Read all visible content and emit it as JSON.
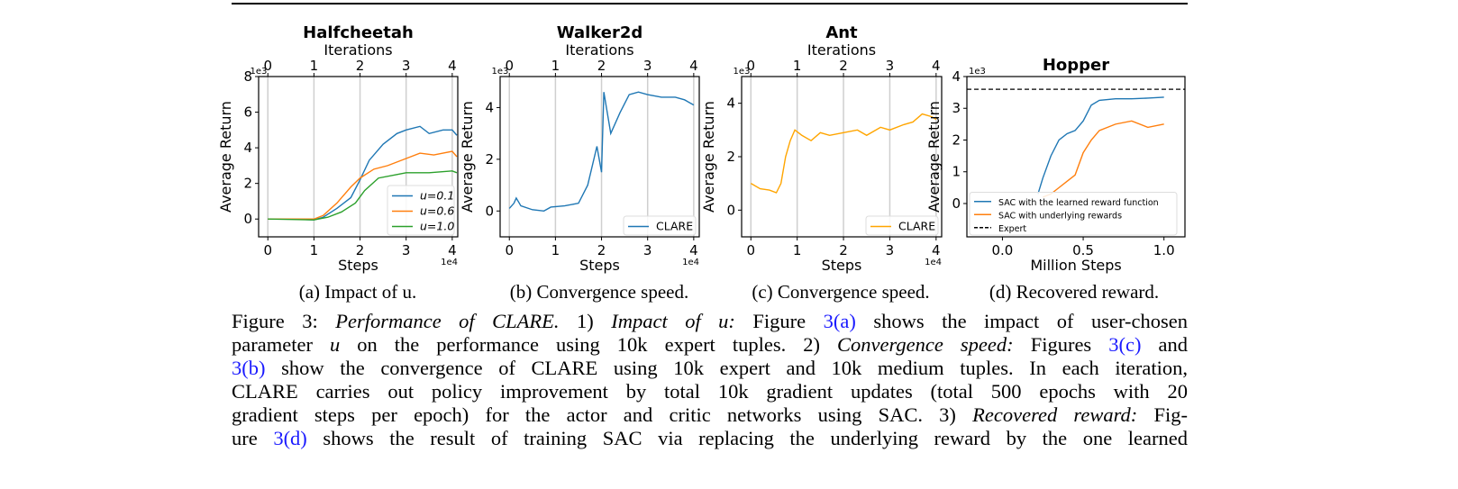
{
  "subcaptions": [
    "(a) Impact of u.",
    "(b) Convergence speed.",
    "(c) Convergence speed.",
    "(d) Recovered reward."
  ],
  "caption": {
    "lines": [
      [
        {
          "t": "Figure 3: ",
          "s": ""
        },
        {
          "t": "Performance of CLARE.",
          "s": "it"
        },
        {
          "t": " 1) ",
          "s": ""
        },
        {
          "t": "Impact of u:",
          "s": "it"
        },
        {
          "t": " Figure ",
          "s": ""
        },
        {
          "t": "3(a)",
          "s": "lk"
        },
        {
          "t": " shows the impact of user-chosen",
          "s": ""
        }
      ],
      [
        {
          "t": "parameter ",
          "s": ""
        },
        {
          "t": "u",
          "s": "it"
        },
        {
          "t": " on the performance using 10k expert tuples. 2) ",
          "s": ""
        },
        {
          "t": "Convergence speed:",
          "s": "it"
        },
        {
          "t": " Figures ",
          "s": ""
        },
        {
          "t": "3(c)",
          "s": "lk"
        },
        {
          "t": " and",
          "s": ""
        }
      ],
      [
        {
          "t": "3(b)",
          "s": "lk"
        },
        {
          "t": " show the convergence of CLARE using 10k expert and 10k medium tuples. In each iteration,",
          "s": ""
        }
      ],
      [
        {
          "t": "CLARE carries out policy improvement by total 10k gradient updates (total 500 epochs with 20",
          "s": ""
        }
      ],
      [
        {
          "t": "gradient steps per epoch) for the actor and critic networks using SAC. 3) ",
          "s": ""
        },
        {
          "t": "Recovered reward:",
          "s": "it"
        },
        {
          "t": " Fig-",
          "s": ""
        }
      ],
      [
        {
          "t": "ure ",
          "s": ""
        },
        {
          "t": "3(d)",
          "s": "lk"
        },
        {
          "t": " shows the result of training SAC via replacing the underlying reward by the one learned",
          "s": ""
        }
      ]
    ]
  },
  "chart_data": [
    {
      "type": "line",
      "title": "Halfcheetah",
      "top_xlabel": "Iterations",
      "top_ticks": [
        "0",
        "1",
        "2",
        "3",
        "4"
      ],
      "xlabel": "Steps",
      "ylabel": "Average Return",
      "x_offset_text": "1e4",
      "y_offset_text": "1e3",
      "xlim": [
        -0.2,
        4.12
      ],
      "ylim": [
        -1,
        8
      ],
      "xticks": [
        0,
        1,
        2,
        3,
        4
      ],
      "yticks": [
        0,
        2,
        4,
        6,
        8
      ],
      "grid": "vertical",
      "legend": "lower-right",
      "series": [
        {
          "name": "u=0.1",
          "color": "#1f77b4",
          "x": [
            0,
            0.5,
            1.0,
            1.2,
            1.5,
            1.8,
            2.0,
            2.2,
            2.5,
            2.8,
            3.0,
            3.3,
            3.5,
            3.8,
            4.0,
            4.1
          ],
          "y": [
            0,
            0,
            -0.05,
            0.1,
            0.6,
            1.2,
            2.2,
            3.3,
            4.2,
            4.8,
            5.0,
            5.2,
            4.8,
            5.0,
            5.0,
            4.7
          ]
        },
        {
          "name": "u=0.6",
          "color": "#ff7f0e",
          "x": [
            0,
            1.0,
            1.2,
            1.5,
            1.8,
            2.0,
            2.3,
            2.6,
            3.0,
            3.3,
            3.6,
            4.0,
            4.1
          ],
          "y": [
            0,
            0,
            0.2,
            0.9,
            1.8,
            2.3,
            2.8,
            3.0,
            3.4,
            3.7,
            3.6,
            3.8,
            3.5
          ]
        },
        {
          "name": "u=1.0",
          "color": "#2ca02c",
          "x": [
            0,
            1.0,
            1.3,
            1.6,
            1.9,
            2.1,
            2.4,
            2.8,
            3.0,
            3.5,
            4.0,
            4.1
          ],
          "y": [
            0,
            -0.05,
            0.1,
            0.4,
            0.9,
            1.6,
            2.3,
            2.5,
            2.6,
            2.6,
            2.7,
            2.6
          ]
        }
      ]
    },
    {
      "type": "line",
      "title": "Walker2d",
      "top_xlabel": "Iterations",
      "top_ticks": [
        "0",
        "1",
        "2",
        "3",
        "4"
      ],
      "xlabel": "Steps",
      "ylabel": "Average Return",
      "x_offset_text": "1e4",
      "y_offset_text": "1e3",
      "xlim": [
        -0.2,
        4.12
      ],
      "ylim": [
        -1,
        5.2
      ],
      "xticks": [
        0,
        1,
        2,
        3,
        4
      ],
      "yticks": [
        0,
        2,
        4
      ],
      "grid": "vertical",
      "legend": "lower-right",
      "series": [
        {
          "name": "CLARE",
          "color": "#1f77b4",
          "x": [
            0,
            0.1,
            0.15,
            0.25,
            0.5,
            0.75,
            0.9,
            1.2,
            1.5,
            1.7,
            1.9,
            2.0,
            2.05,
            2.2,
            2.4,
            2.6,
            2.8,
            3.0,
            3.3,
            3.6,
            3.8,
            4.0
          ],
          "y": [
            0.1,
            0.3,
            0.5,
            0.2,
            0.05,
            0.0,
            0.15,
            0.2,
            0.3,
            1.0,
            2.5,
            1.5,
            4.6,
            3.0,
            3.8,
            4.5,
            4.6,
            4.5,
            4.4,
            4.4,
            4.3,
            4.1
          ]
        }
      ]
    },
    {
      "type": "line",
      "title": "Ant",
      "top_xlabel": "Iterations",
      "top_ticks": [
        "0",
        "1",
        "2",
        "3",
        "4"
      ],
      "xlabel": "Steps",
      "ylabel": "Average Return",
      "x_offset_text": "1e4",
      "y_offset_text": "1e3",
      "xlim": [
        -0.2,
        4.12
      ],
      "ylim": [
        -1,
        5
      ],
      "xticks": [
        0,
        1,
        2,
        3,
        4
      ],
      "yticks": [
        0,
        2,
        4
      ],
      "grid": "vertical",
      "legend": "lower-right",
      "series": [
        {
          "name": "CLARE",
          "color": "#ffa500",
          "x": [
            0,
            0.2,
            0.4,
            0.55,
            0.65,
            0.75,
            0.85,
            0.95,
            1.1,
            1.3,
            1.5,
            1.7,
            2.0,
            2.3,
            2.5,
            2.8,
            3.0,
            3.3,
            3.5,
            3.7,
            3.9,
            4.0
          ],
          "y": [
            1.0,
            0.8,
            0.75,
            0.65,
            1.0,
            2.0,
            2.6,
            3.0,
            2.8,
            2.6,
            2.9,
            2.8,
            2.9,
            3.0,
            2.8,
            3.1,
            3.0,
            3.2,
            3.3,
            3.6,
            3.5,
            3.4
          ]
        }
      ]
    },
    {
      "type": "line",
      "title": "Hopper",
      "xlabel": "Million Steps",
      "ylabel": "Average Return",
      "y_offset_text": "1e3",
      "xlim": [
        -0.22,
        1.13
      ],
      "ylim": [
        -1.05,
        4
      ],
      "xticks": [
        0.0,
        0.5,
        1.0
      ],
      "xticklabels": [
        "0.0",
        "0.5",
        "1.0"
      ],
      "yticks": [
        0,
        1,
        2,
        3,
        4
      ],
      "grid": "none",
      "legend": "lower-left",
      "series": [
        {
          "name": "SAC with the learned reward function",
          "color": "#1f77b4",
          "x": [
            0.22,
            0.25,
            0.3,
            0.35,
            0.4,
            0.45,
            0.5,
            0.55,
            0.6,
            0.7,
            0.8,
            0.9,
            1.0
          ],
          "y": [
            0.3,
            0.8,
            1.5,
            2.0,
            2.2,
            2.3,
            2.6,
            3.1,
            3.25,
            3.3,
            3.3,
            3.32,
            3.35
          ]
        },
        {
          "name": "SAC with underlying rewards",
          "color": "#ff7f0e",
          "x": [
            0.25,
            0.3,
            0.35,
            0.4,
            0.45,
            0.5,
            0.55,
            0.6,
            0.7,
            0.8,
            0.9,
            1.0
          ],
          "y": [
            0.2,
            0.3,
            0.5,
            0.7,
            0.9,
            1.6,
            2.0,
            2.3,
            2.5,
            2.6,
            2.4,
            2.5
          ]
        },
        {
          "name": "Expert",
          "color": "#000000",
          "dashed": true,
          "hline": 3.6
        }
      ]
    }
  ]
}
